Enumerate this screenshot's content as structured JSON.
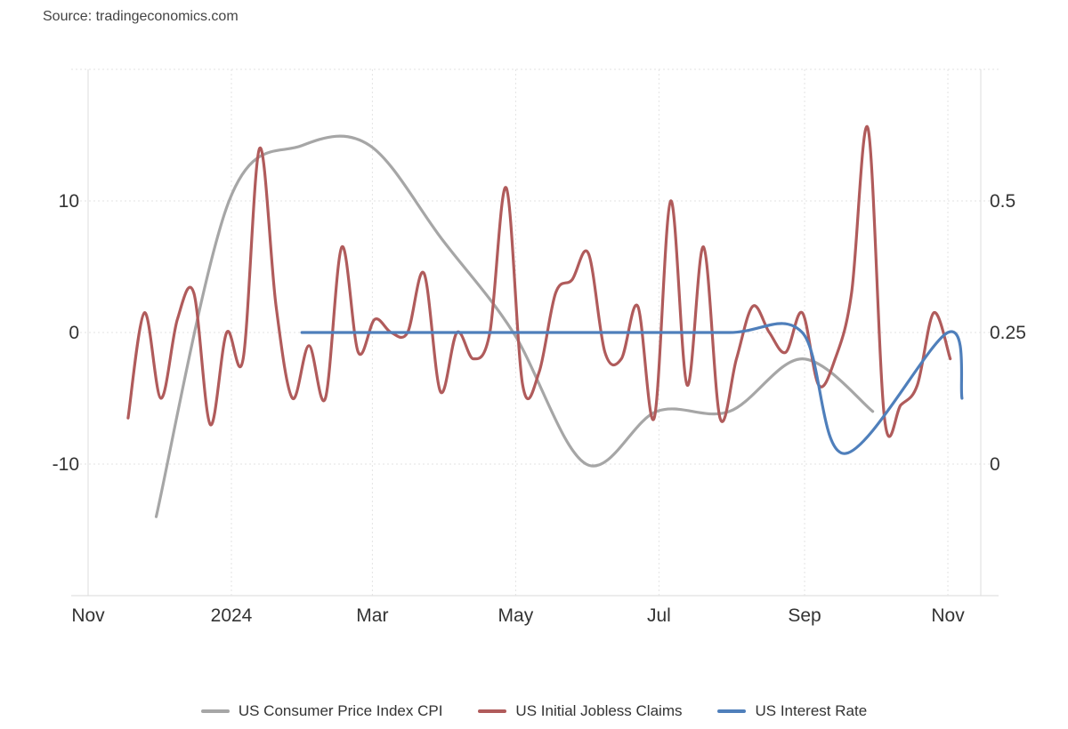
{
  "source": "Source: tradingeconomics.com",
  "chart_data": {
    "type": "line",
    "title": "",
    "grid": true,
    "legend_position": "bottom",
    "x_ticks": [
      "Nov",
      "2024",
      "Mar",
      "May",
      "Jul",
      "Sep",
      "Nov"
    ],
    "x_tick_dates": [
      "2023-11-01",
      "2024-01-01",
      "2024-03-01",
      "2024-05-01",
      "2024-07-01",
      "2024-09-01",
      "2024-11-01"
    ],
    "xlim": [
      "2023-11-01",
      "2024-11-15"
    ],
    "y_left": {
      "ticks": [
        "10",
        "0",
        "-10"
      ],
      "tick_values": [
        10,
        0,
        -10
      ],
      "ylim": [
        -20,
        20
      ]
    },
    "y_right": {
      "ticks": [
        "0.5",
        "0.25",
        "0"
      ],
      "tick_values": [
        0.5,
        0.25,
        0
      ],
      "ylim": [
        -0.25,
        0.75
      ]
    },
    "series": [
      {
        "name": "US Consumer Price Index CPI",
        "axis": "left",
        "color": "#a6a6a6",
        "points": [
          [
            "2023-11-30",
            -14
          ],
          [
            "2023-12-31",
            10
          ],
          [
            "2024-01-31",
            14.2
          ],
          [
            "2024-02-29",
            14.2
          ],
          [
            "2024-03-31",
            7
          ],
          [
            "2024-04-30",
            0
          ],
          [
            "2024-05-31",
            -10
          ],
          [
            "2024-06-30",
            -6
          ],
          [
            "2024-07-31",
            -6
          ],
          [
            "2024-08-31",
            -2
          ],
          [
            "2024-09-30",
            -6
          ]
        ]
      },
      {
        "name": "US Initial Jobless Claims",
        "axis": "left",
        "color": "#b05b5b",
        "points": [
          [
            "2023-11-18",
            -6.5
          ],
          [
            "2023-11-25",
            1.5
          ],
          [
            "2023-12-02",
            -5
          ],
          [
            "2023-12-09",
            1
          ],
          [
            "2023-12-16",
            3
          ],
          [
            "2023-12-23",
            -7
          ],
          [
            "2023-12-30",
            0
          ],
          [
            "2024-01-06",
            -2
          ],
          [
            "2024-01-13",
            14
          ],
          [
            "2024-01-20",
            2
          ],
          [
            "2024-01-27",
            -5
          ],
          [
            "2024-02-03",
            -1
          ],
          [
            "2024-02-10",
            -5
          ],
          [
            "2024-02-17",
            6.5
          ],
          [
            "2024-02-24",
            -1.5
          ],
          [
            "2024-03-02",
            1
          ],
          [
            "2024-03-09",
            0
          ],
          [
            "2024-03-16",
            0
          ],
          [
            "2024-03-23",
            4.5
          ],
          [
            "2024-03-30",
            -4.5
          ],
          [
            "2024-04-06",
            0
          ],
          [
            "2024-04-13",
            -2
          ],
          [
            "2024-04-20",
            0
          ],
          [
            "2024-04-27",
            11
          ],
          [
            "2024-05-04",
            -4
          ],
          [
            "2024-05-11",
            -3
          ],
          [
            "2024-05-18",
            3
          ],
          [
            "2024-05-25",
            4
          ],
          [
            "2024-06-01",
            6
          ],
          [
            "2024-06-08",
            -1.5
          ],
          [
            "2024-06-15",
            -2
          ],
          [
            "2024-06-22",
            2
          ],
          [
            "2024-06-29",
            -6.5
          ],
          [
            "2024-07-06",
            10
          ],
          [
            "2024-07-13",
            -4
          ],
          [
            "2024-07-20",
            6.5
          ],
          [
            "2024-07-27",
            -6.5
          ],
          [
            "2024-08-03",
            -2
          ],
          [
            "2024-08-10",
            2
          ],
          [
            "2024-08-17",
            0
          ],
          [
            "2024-08-24",
            -1.5
          ],
          [
            "2024-08-31",
            1.5
          ],
          [
            "2024-09-07",
            -4
          ],
          [
            "2024-09-14",
            -2
          ],
          [
            "2024-09-21",
            3
          ],
          [
            "2024-09-28",
            15.5
          ],
          [
            "2024-10-05",
            -6.5
          ],
          [
            "2024-10-12",
            -5.5
          ],
          [
            "2024-10-19",
            -4
          ],
          [
            "2024-10-26",
            1.5
          ],
          [
            "2024-11-02",
            -2
          ]
        ]
      },
      {
        "name": "US Interest Rate",
        "axis": "right",
        "color": "#4f7fbb",
        "points": [
          [
            "2024-01-31",
            0.25
          ],
          [
            "2024-03-20",
            0.25
          ],
          [
            "2024-05-01",
            0.25
          ],
          [
            "2024-06-12",
            0.25
          ],
          [
            "2024-07-31",
            0.25
          ],
          [
            "2024-08-31",
            0.25
          ],
          [
            "2024-09-18",
            0.02
          ],
          [
            "2024-11-01",
            0.25
          ],
          [
            "2024-11-07",
            0.125
          ]
        ]
      }
    ]
  }
}
